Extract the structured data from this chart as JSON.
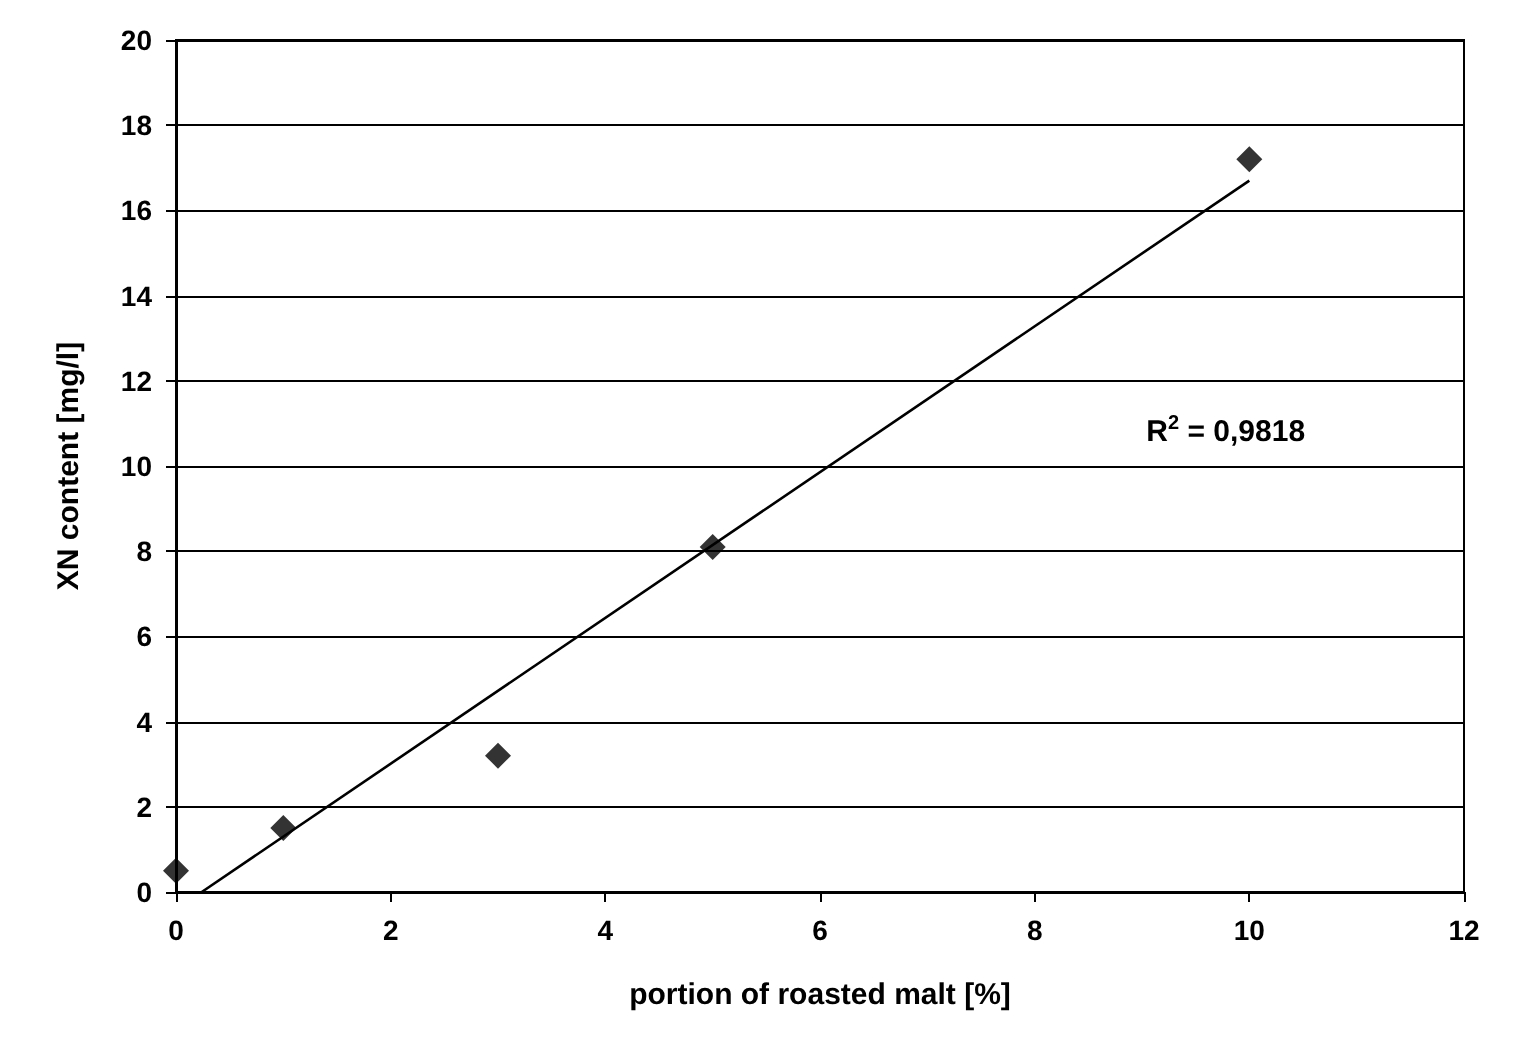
{
  "chart_data": {
    "type": "scatter",
    "xlabel": "portion of roasted malt [%]",
    "ylabel": "XN content [mg/l]",
    "series": [
      {
        "color": "#000000",
        "marker": "diamond",
        "x": [
          0,
          1,
          3,
          5,
          10
        ],
        "values": [
          0.5,
          1.5,
          3.2,
          8.1,
          17.2
        ]
      },
      {
        "type": "line",
        "color": "#000000",
        "marker": "none",
        "x": [
          0.24,
          10
        ],
        "values": [
          0,
          16.7
        ]
      }
    ],
    "annotations": [
      "R$^{2}$ = 0,9818"
    ],
    "xlim": [
      0,
      12
    ],
    "xticks": [
      0,
      2,
      4,
      6,
      8,
      10,
      12
    ],
    "ylim": [
      0,
      20
    ],
    "yticks": [
      0,
      2,
      4,
      6,
      8,
      10,
      12,
      14,
      16,
      18,
      20
    ],
    "grid": "y"
  }
}
